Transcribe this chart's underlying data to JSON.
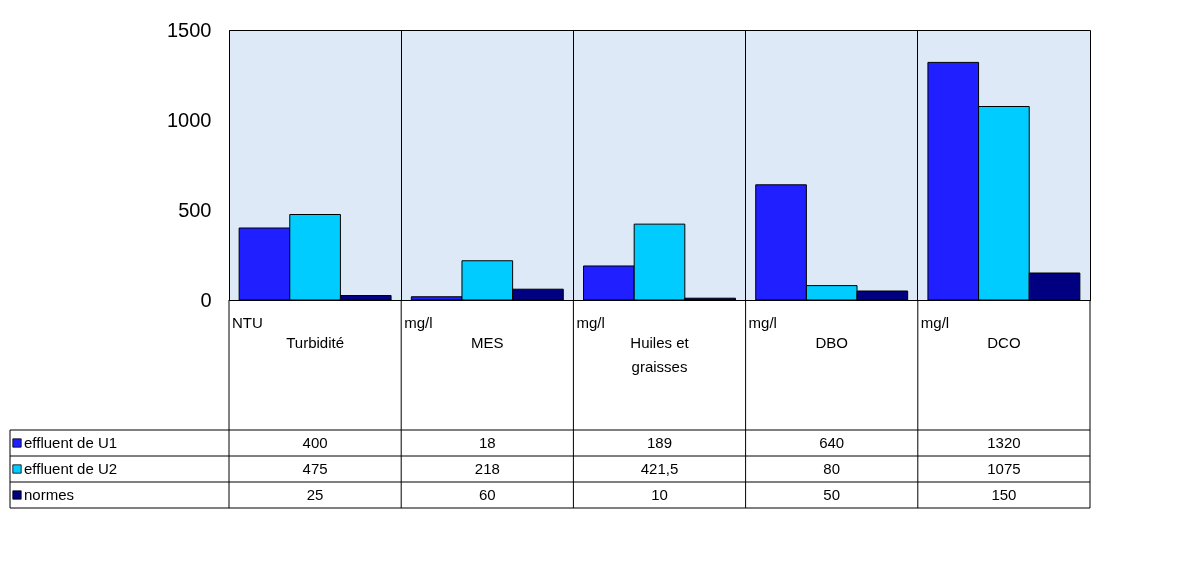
{
  "chart_data": {
    "type": "bar",
    "categories": [
      "Turbidité",
      "MES",
      "Huiles et graisses",
      "DBO",
      "DCO"
    ],
    "series": [
      {
        "name": "effluent de U1",
        "color": "#1f1fff",
        "values": [
          400,
          18,
          189,
          640,
          1320
        ],
        "value_labels": [
          "400",
          "18",
          "189",
          "640",
          "1320"
        ]
      },
      {
        "name": "effluent de U2",
        "color": "#00ccff",
        "values": [
          475,
          218,
          421.5,
          80,
          1075
        ],
        "value_labels": [
          "475",
          "218",
          "421,5",
          "80",
          "1075"
        ]
      },
      {
        "name": "normes",
        "color": "#000080",
        "values": [
          25,
          60,
          10,
          50,
          150
        ],
        "value_labels": [
          "25",
          "60",
          "10",
          "50",
          "150"
        ]
      }
    ],
    "annotations": [
      "NTU",
      "mg/l",
      "mg/l",
      "mg/l",
      "mg/l"
    ],
    "legend": "bottom left",
    "ylim": [
      0,
      1500
    ],
    "yticks": [
      0,
      500,
      1000,
      1500
    ],
    "grid": false
  }
}
